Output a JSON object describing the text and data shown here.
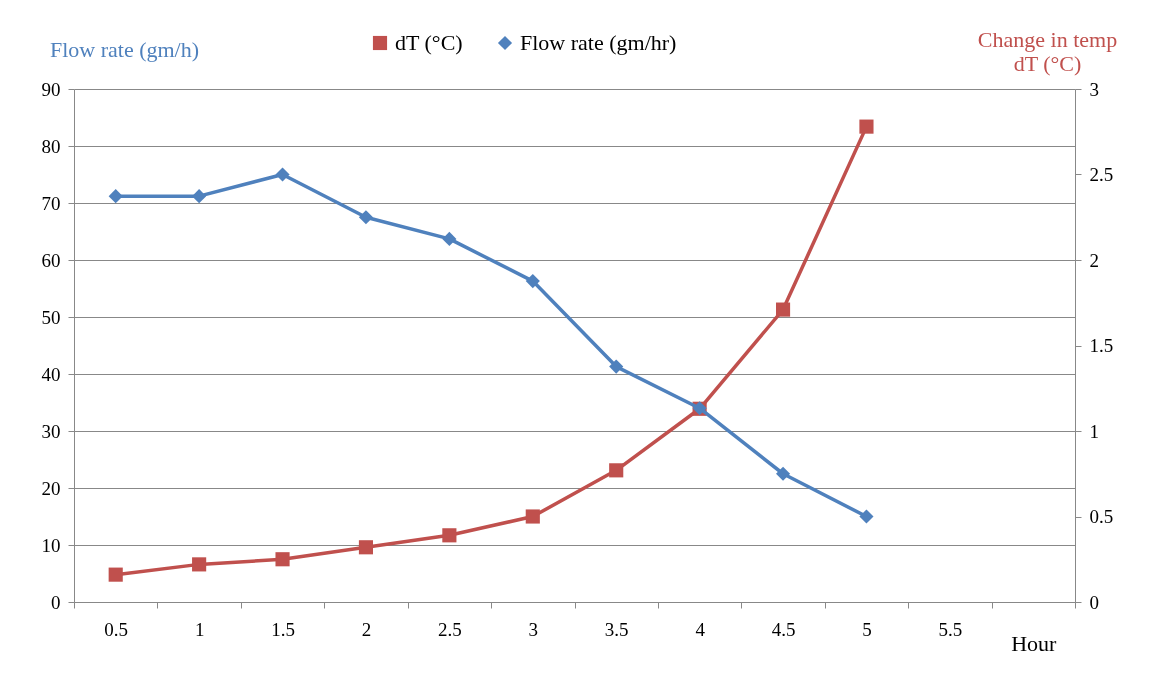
{
  "chart_data": {
    "type": "line",
    "categories": [
      "0.5",
      "1",
      "1.5",
      "2",
      "2.5",
      "3",
      "3.5",
      "4",
      "4.5",
      "5",
      "5.5",
      null
    ],
    "xlabel": "Hour",
    "ylabel": "Flow rate (gm/h)",
    "y2label": "Change in temp dT (°C)",
    "series": [
      {
        "name": "dT (°C)",
        "color": "#c0504d",
        "axis": "y2",
        "marker": "square",
        "values": [
          0.16,
          0.22,
          0.25,
          0.32,
          0.39,
          0.5,
          0.77,
          1.13,
          1.71,
          2.78,
          null,
          null
        ]
      },
      {
        "name": "Flow rate (gm/hr)",
        "color": "#4f81bd",
        "axis": "y",
        "marker": "diamond",
        "values": [
          71.2,
          71.2,
          75,
          67.5,
          63.7,
          56.3,
          41.3,
          34,
          22.5,
          15,
          null,
          null
        ]
      }
    ],
    "ylim": [
      0,
      90
    ],
    "yticks": [
      0,
      10,
      20,
      30,
      40,
      50,
      60,
      70,
      80,
      90
    ],
    "y2lim": [
      0,
      3
    ],
    "y2ticks": [
      0,
      0.5,
      1,
      1.5,
      2,
      2.5,
      3
    ],
    "grid": "y",
    "legend": "top"
  }
}
